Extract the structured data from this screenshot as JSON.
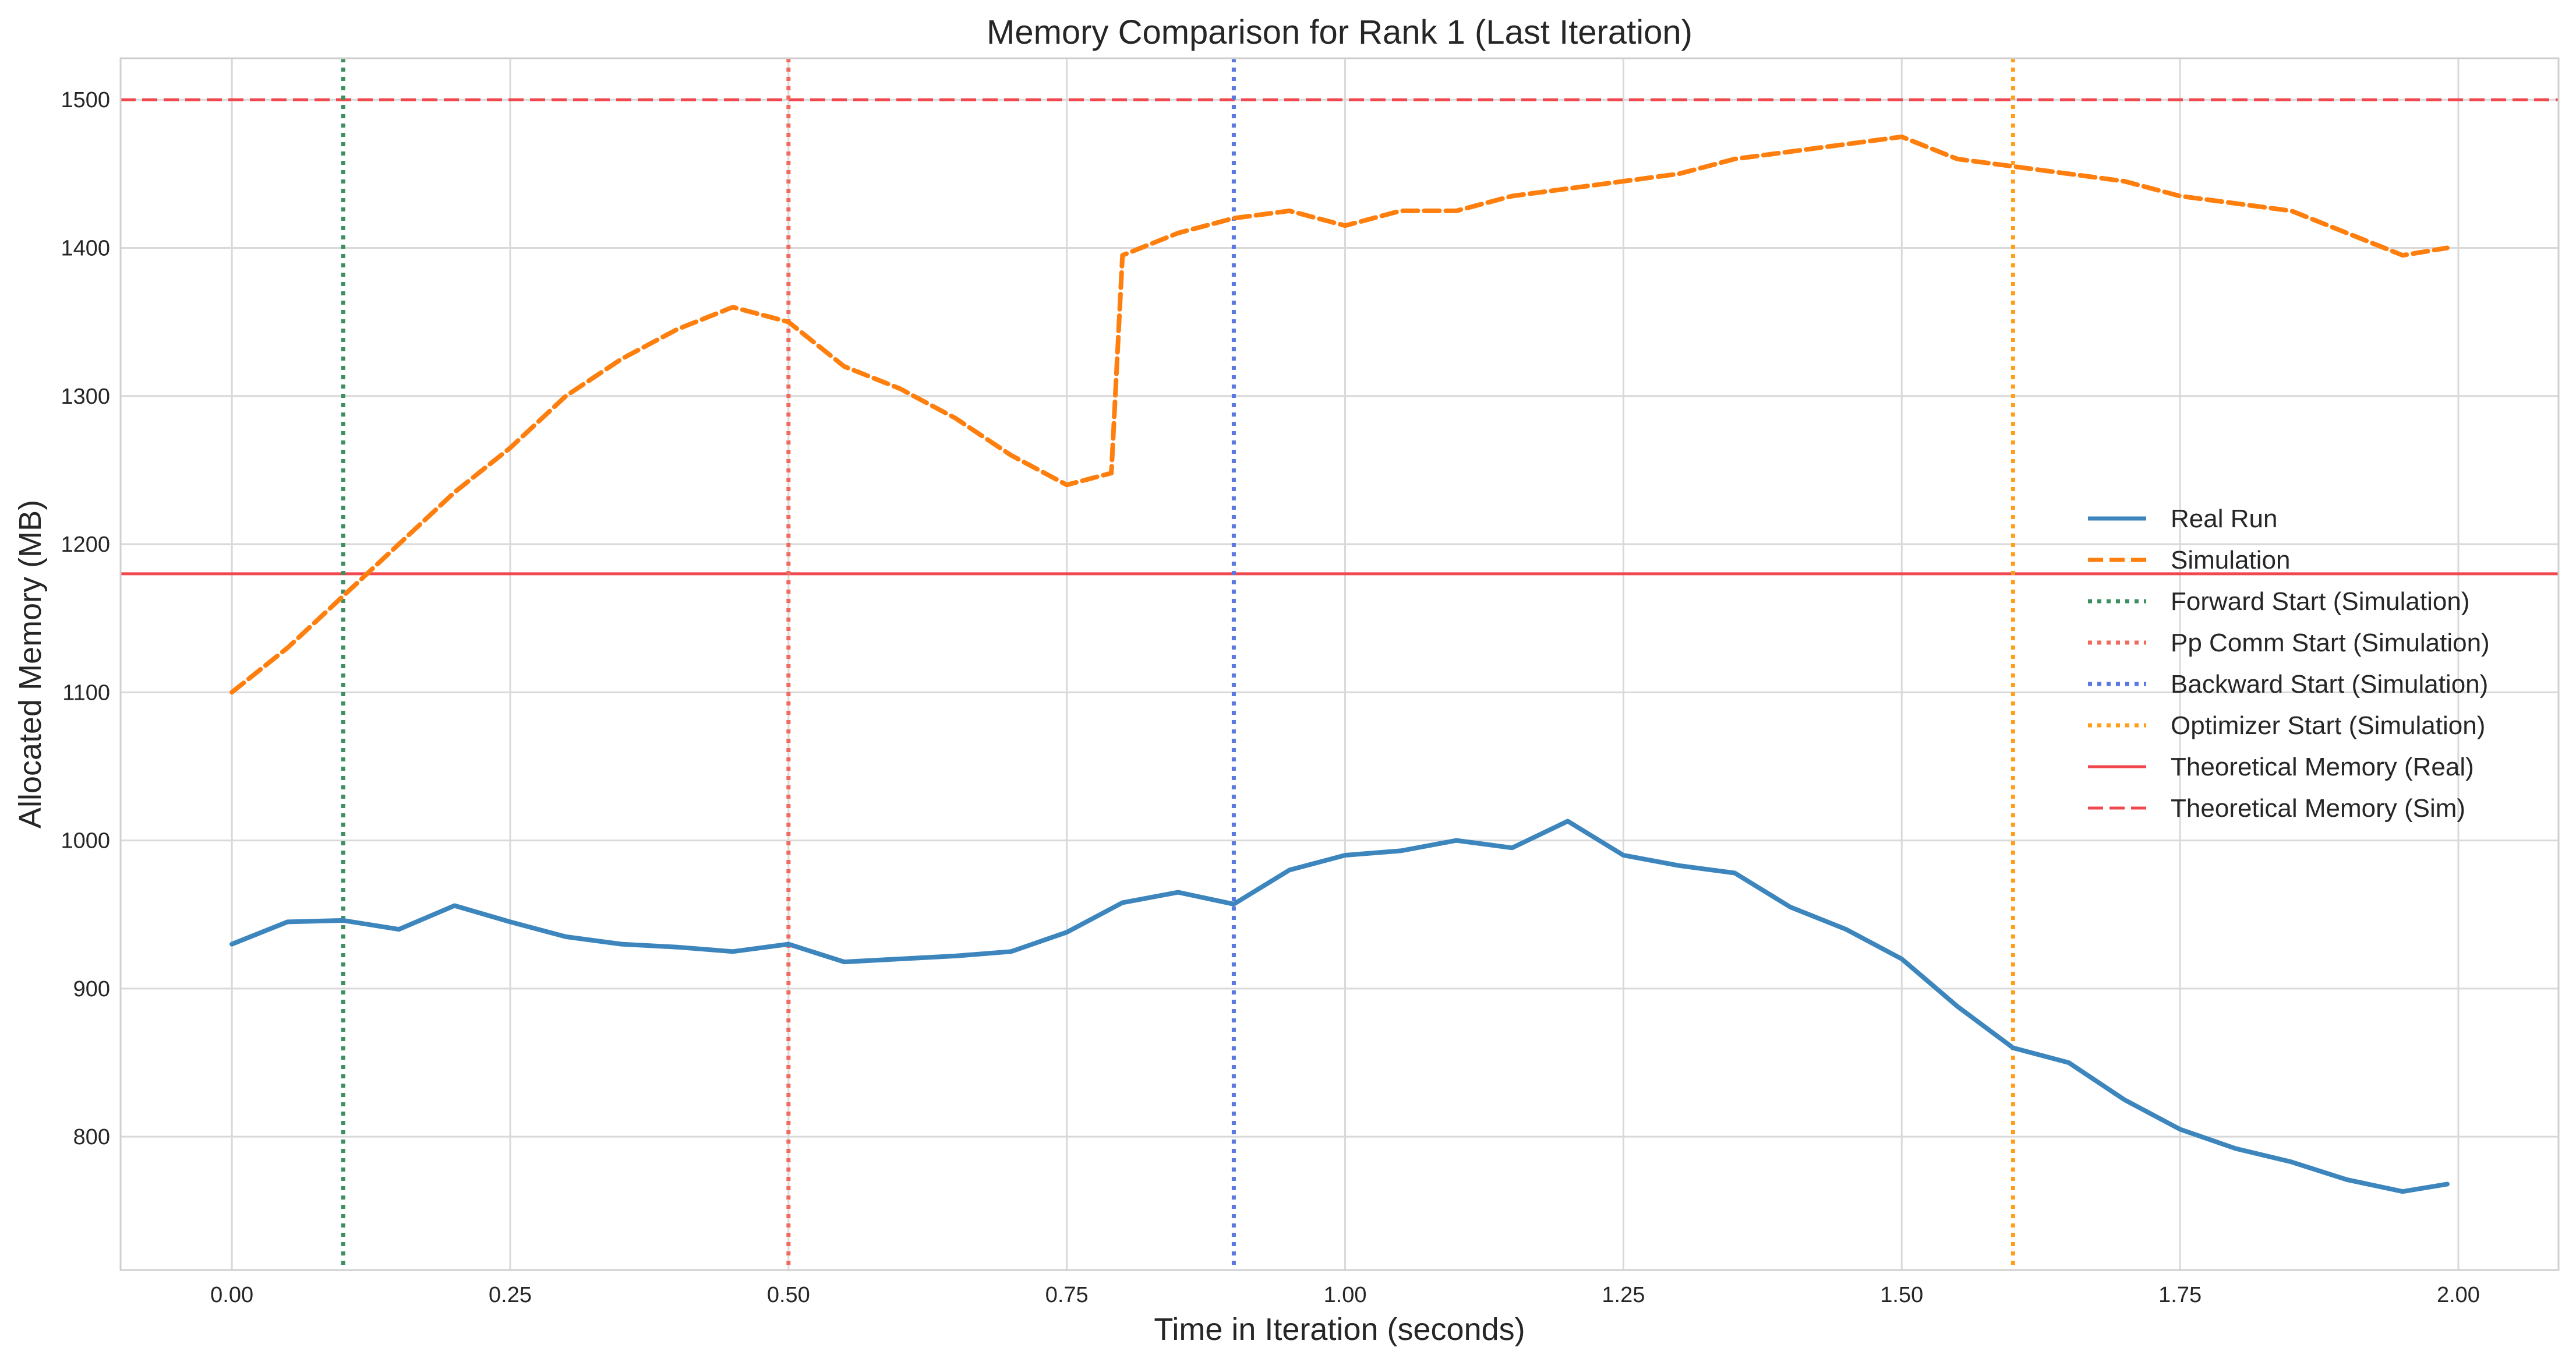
{
  "chart_data": {
    "type": "line",
    "title": "Memory Comparison for Rank 1 (Last Iteration)",
    "xlabel": "Time in Iteration (seconds)",
    "ylabel": "Allocated Memory (MB)",
    "xlim": [
      -0.1,
      2.09
    ],
    "ylim": [
      710,
      1528
    ],
    "xticks": [
      0.0,
      0.25,
      0.5,
      0.75,
      1.0,
      1.25,
      1.5,
      1.75,
      2.0
    ],
    "xtick_labels": [
      "0.00",
      "0.25",
      "0.50",
      "0.75",
      "1.00",
      "1.25",
      "1.50",
      "1.75",
      "2.00"
    ],
    "yticks": [
      800,
      900,
      1000,
      1100,
      1200,
      1300,
      1400,
      1500
    ],
    "ytick_labels": [
      "800",
      "900",
      "1000",
      "1100",
      "1200",
      "1300",
      "1400",
      "1500"
    ],
    "grid": true,
    "legend_position": "center-right",
    "series": [
      {
        "name": "Real Run",
        "style": "solid",
        "color": "#3c86bd",
        "x": [
          0.0,
          0.05,
          0.1,
          0.15,
          0.2,
          0.25,
          0.3,
          0.35,
          0.4,
          0.45,
          0.5,
          0.55,
          0.6,
          0.65,
          0.7,
          0.75,
          0.8,
          0.85,
          0.9,
          0.95,
          1.0,
          1.05,
          1.1,
          1.15,
          1.2,
          1.25,
          1.3,
          1.35,
          1.4,
          1.45,
          1.5,
          1.55,
          1.6,
          1.65,
          1.7,
          1.75,
          1.8,
          1.85,
          1.9,
          1.95,
          1.99
        ],
        "y": [
          930,
          945,
          946,
          940,
          956,
          945,
          935,
          930,
          928,
          925,
          930,
          918,
          920,
          922,
          925,
          938,
          958,
          965,
          957,
          980,
          990,
          993,
          1000,
          995,
          1013,
          990,
          983,
          978,
          955,
          940,
          920,
          888,
          860,
          850,
          825,
          805,
          792,
          783,
          771,
          763,
          768
        ]
      },
      {
        "name": "Simulation",
        "style": "dashed",
        "color": "#ff7f0e",
        "x": [
          0.0,
          0.05,
          0.1,
          0.15,
          0.2,
          0.25,
          0.3,
          0.35,
          0.4,
          0.45,
          0.5,
          0.55,
          0.6,
          0.65,
          0.7,
          0.75,
          0.79,
          0.8,
          0.85,
          0.9,
          0.95,
          1.0,
          1.05,
          1.1,
          1.15,
          1.2,
          1.25,
          1.3,
          1.35,
          1.4,
          1.45,
          1.5,
          1.55,
          1.6,
          1.65,
          1.7,
          1.75,
          1.8,
          1.85,
          1.9,
          1.95,
          1.99
        ],
        "y": [
          1100,
          1130,
          1165,
          1200,
          1235,
          1265,
          1300,
          1325,
          1345,
          1360,
          1350,
          1320,
          1305,
          1285,
          1260,
          1240,
          1248,
          1395,
          1410,
          1420,
          1425,
          1415,
          1425,
          1425,
          1435,
          1440,
          1445,
          1450,
          1460,
          1465,
          1470,
          1475,
          1460,
          1455,
          1450,
          1445,
          1435,
          1430,
          1425,
          1410,
          1395,
          1400
        ]
      }
    ],
    "vlines": [
      {
        "name": "Forward Start (Simulation)",
        "x": 0.1,
        "color": "#3d8f5f",
        "style": "dotted"
      },
      {
        "name": "Pp Comm Start (Simulation)",
        "x": 0.5,
        "color": "#f16a5c",
        "style": "dotted"
      },
      {
        "name": "Backward Start (Simulation)",
        "x": 0.9,
        "color": "#5a78e0",
        "style": "dotted"
      },
      {
        "name": "Optimizer Start (Simulation)",
        "x": 1.6,
        "color": "#ff9e1b",
        "style": "dotted"
      }
    ],
    "hlines": [
      {
        "name": "Theoretical Memory (Real)",
        "y": 1180,
        "color": "#f0484f",
        "style": "solid"
      },
      {
        "name": "Theoretical Memory (Sim)",
        "y": 1500,
        "color": "#f0484f",
        "style": "dashed"
      }
    ],
    "legend": [
      "Real Run",
      "Simulation",
      "Forward Start (Simulation)",
      "Pp Comm Start (Simulation)",
      "Backward Start (Simulation)",
      "Optimizer Start (Simulation)",
      "Theoretical Memory (Real)",
      "Theoretical Memory (Sim)"
    ]
  }
}
